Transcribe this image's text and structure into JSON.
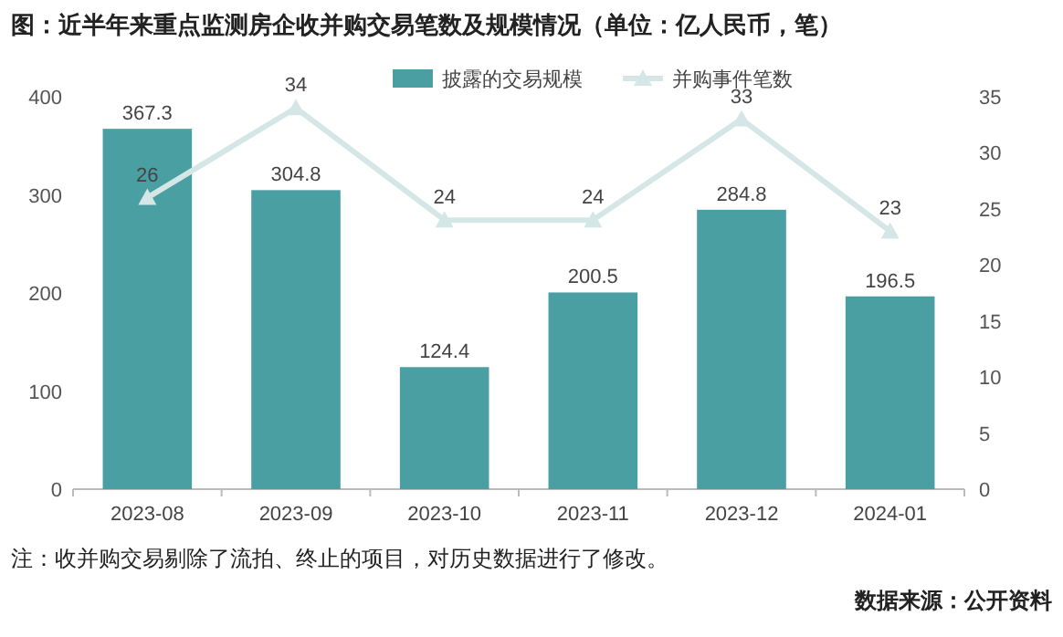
{
  "chart_data": {
    "type": "bar",
    "title": "图：近半年来重点监测房企收并购交易笔数及规模情况（单位：亿人民币，笔）",
    "categories": [
      "2023-08",
      "2023-09",
      "2023-10",
      "2023-11",
      "2023-12",
      "2024-01"
    ],
    "series": [
      {
        "name": "披露的交易规模",
        "color": "#4a9fa3",
        "values": [
          367.3,
          304.8,
          124.4,
          200.5,
          284.8,
          196.5
        ]
      },
      {
        "name": "并购事件笔数",
        "type": "line",
        "axis": "y2",
        "color": "#d5e6e7",
        "values": [
          26,
          34,
          24,
          24,
          33,
          23
        ]
      }
    ],
    "ylim": [
      0,
      400
    ],
    "yticks": [
      0,
      100,
      200,
      300,
      400
    ],
    "y2lim": [
      0,
      35
    ],
    "y2ticks": [
      0,
      5,
      10,
      15,
      20,
      25,
      30,
      35
    ],
    "marker": "triangle",
    "data_labels": true,
    "legend": "top",
    "grid": false,
    "annotations": [
      "注：收并购交易剔除了流拍、终止的项目，对历史数据进行了修改。",
      "数据来源：公开资料"
    ]
  }
}
